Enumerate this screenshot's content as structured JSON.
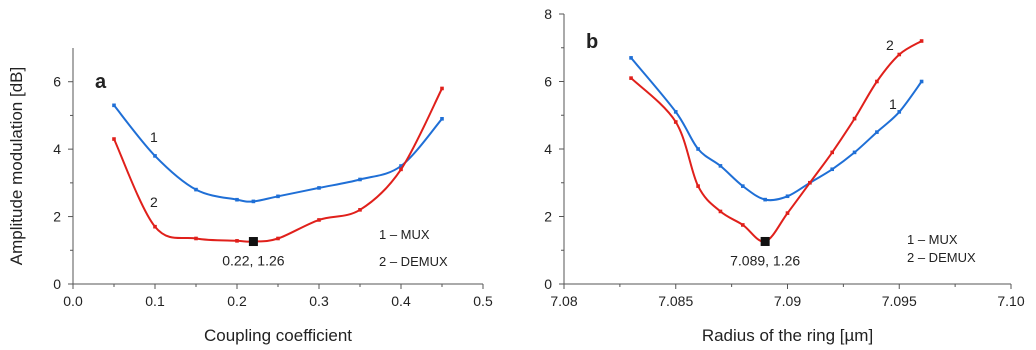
{
  "chart_data": [
    {
      "type": "line",
      "panel_label": "a",
      "xlabel": "Coupling coefficient",
      "ylabel": "Amplitude modulation [dB]",
      "xlim": [
        0.0,
        0.5
      ],
      "ylim": [
        0,
        7
      ],
      "xticks": [
        0.0,
        0.1,
        0.2,
        0.3,
        0.4,
        0.5
      ],
      "xtick_labels": [
        "0.0",
        "0.1",
        "0.2",
        "0.3",
        "0.4",
        "0.5"
      ],
      "yticks": [
        0,
        2,
        4,
        6
      ],
      "ytick_labels": [
        "0",
        "2",
        "4",
        "6"
      ],
      "grid": false,
      "legend": [
        "1 – MUX",
        "2 – DEMUX"
      ],
      "legend_position": "bottom-right",
      "series": [
        {
          "label": "1",
          "color": "#1f6fd6",
          "x": [
            0.05,
            0.1,
            0.15,
            0.2,
            0.22,
            0.25,
            0.3,
            0.35,
            0.4,
            0.45
          ],
          "y": [
            5.3,
            3.8,
            2.8,
            2.5,
            2.45,
            2.6,
            2.85,
            3.1,
            3.5,
            4.9
          ]
        },
        {
          "label": "2",
          "color": "#e0201b",
          "x": [
            0.05,
            0.1,
            0.15,
            0.2,
            0.22,
            0.25,
            0.3,
            0.35,
            0.4,
            0.45
          ],
          "y": [
            4.3,
            1.7,
            1.35,
            1.28,
            1.26,
            1.35,
            1.9,
            2.2,
            3.4,
            5.8
          ]
        }
      ],
      "annotation": {
        "text": "0.22, 1.26",
        "x": 0.22,
        "y": 1.26
      }
    },
    {
      "type": "line",
      "panel_label": "b",
      "xlabel": "Radius of the ring [µm]",
      "ylabel": "",
      "xlim": [
        7.08,
        7.1
      ],
      "ylim": [
        0,
        8
      ],
      "xticks": [
        7.08,
        7.085,
        7.09,
        7.095,
        7.1
      ],
      "xtick_labels": [
        "7.08",
        "7.085",
        "7.09",
        "7.095",
        "7.10"
      ],
      "yticks": [
        0,
        2,
        4,
        6,
        8
      ],
      "ytick_labels": [
        "0",
        "2",
        "4",
        "6",
        "8"
      ],
      "grid": false,
      "legend": [
        "1 – MUX",
        "2 – DEMUX"
      ],
      "legend_position": "bottom-right",
      "series": [
        {
          "label": "1",
          "color": "#1f6fd6",
          "x": [
            7.083,
            7.085,
            7.086,
            7.087,
            7.088,
            7.089,
            7.09,
            7.091,
            7.092,
            7.093,
            7.094,
            7.095,
            7.096
          ],
          "y": [
            6.7,
            5.1,
            4.0,
            3.5,
            2.9,
            2.5,
            2.6,
            3.0,
            3.4,
            3.9,
            4.5,
            5.1,
            6.0
          ]
        },
        {
          "label": "2",
          "color": "#e0201b",
          "x": [
            7.083,
            7.085,
            7.086,
            7.087,
            7.088,
            7.089,
            7.09,
            7.091,
            7.092,
            7.093,
            7.094,
            7.095,
            7.096
          ],
          "y": [
            6.1,
            4.8,
            2.9,
            2.15,
            1.75,
            1.26,
            2.1,
            3.0,
            3.9,
            4.9,
            6.0,
            6.8,
            7.2
          ]
        }
      ],
      "annotation": {
        "text": "7.089, 1.26",
        "x": 7.089,
        "y": 1.26
      }
    }
  ]
}
